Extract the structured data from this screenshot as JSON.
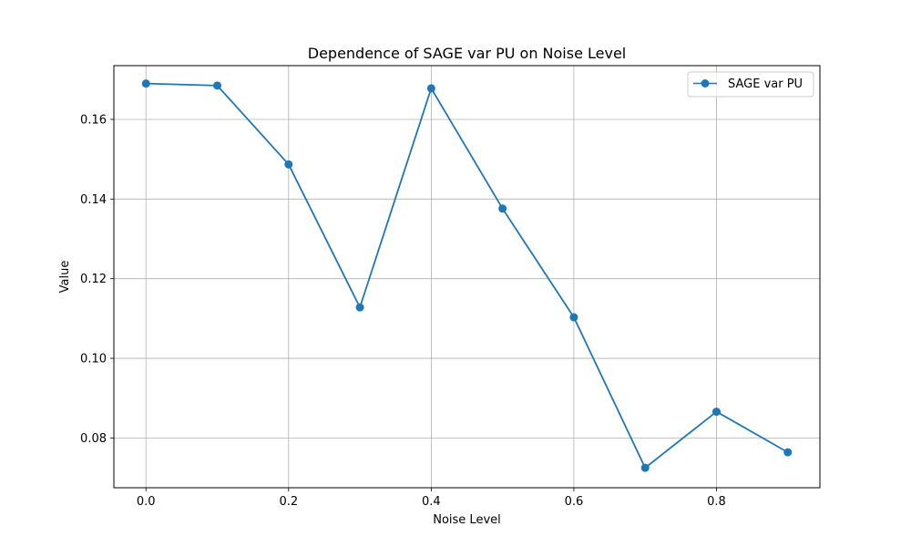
{
  "chart_data": {
    "type": "line",
    "title": "Dependence of SAGE var PU on Noise Level",
    "xlabel": "Noise Level",
    "ylabel": "Value",
    "xlim": [
      -0.045,
      0.945
    ],
    "ylim": [
      0.0675,
      0.1735
    ],
    "xticks": [
      0.0,
      0.2,
      0.4,
      0.6,
      0.8
    ],
    "xtick_labels": [
      "0.0",
      "0.2",
      "0.4",
      "0.6",
      "0.8"
    ],
    "yticks": [
      0.08,
      0.1,
      0.12,
      0.14,
      0.16
    ],
    "ytick_labels": [
      "0.08",
      "0.10",
      "0.12",
      "0.14",
      "0.16"
    ],
    "grid": true,
    "legend_position": "top-right",
    "series": [
      {
        "name": "SAGE var PU",
        "color": "#1f77b4",
        "marker": "circle",
        "x": [
          0.0,
          0.1,
          0.2,
          0.3,
          0.4,
          0.5,
          0.6,
          0.7,
          0.8,
          0.9
        ],
        "y": [
          0.169,
          0.1685,
          0.1487,
          0.1128,
          0.1678,
          0.1376,
          0.1103,
          0.0725,
          0.0866,
          0.0764
        ]
      }
    ]
  }
}
